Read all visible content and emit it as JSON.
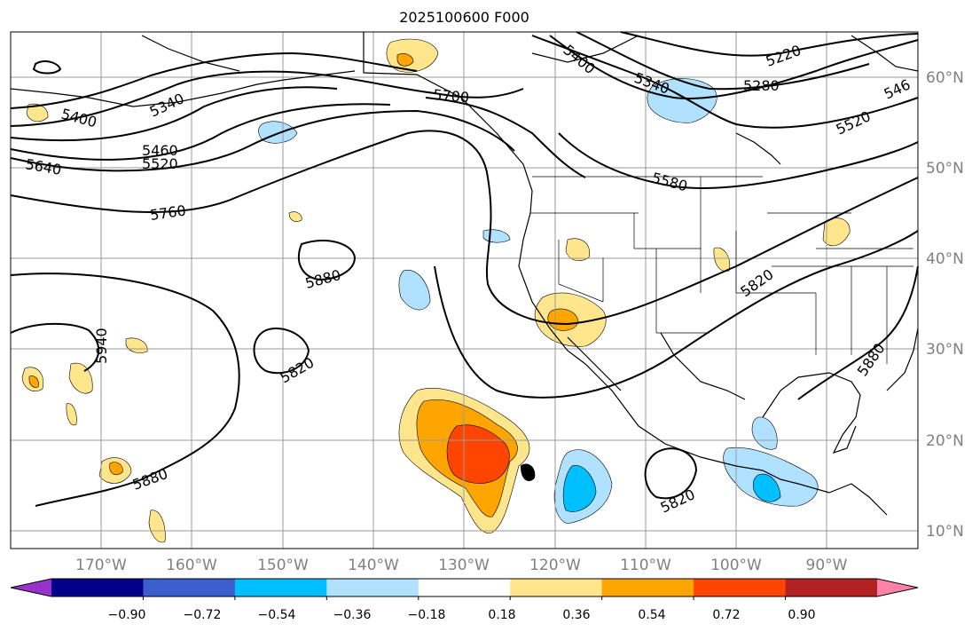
{
  "title": "2025100600 F000",
  "latitude_labels": [
    "60°N",
    "50°N",
    "40°N",
    "30°N",
    "20°N",
    "10°N"
  ],
  "longitude_labels": [
    "170°W",
    "160°W",
    "150°W",
    "140°W",
    "130°W",
    "120°W",
    "110°W",
    "100°W",
    "90°W"
  ],
  "contour_labels": [
    "5220",
    "5280",
    "5340",
    "5400",
    "5460",
    "5520",
    "5580",
    "5640",
    "5700",
    "5760",
    "5820",
    "5880",
    "5940",
    "546"
  ],
  "colorbar": {
    "tick_labels": [
      "−0.90",
      "−0.72",
      "−0.54",
      "−0.36",
      "−0.18",
      "0.18",
      "0.36",
      "0.54",
      "0.72",
      "0.90"
    ],
    "colors": [
      "#9932cc",
      "#00008b",
      "#3a5fcd",
      "#00bfff",
      "#b0e2ff",
      "#ffffff",
      "#ffe68c",
      "#ffa500",
      "#ff4500",
      "#b22222",
      "#ff82ab"
    ]
  },
  "chart_data": {
    "type": "map",
    "projection": "PlateCarree",
    "lon_range_deg": [
      -180,
      -80
    ],
    "lat_range_deg": [
      8,
      65
    ],
    "grid": true,
    "field_contours": "500 hPa geopotential height (m)",
    "contour_levels": [
      5220,
      5280,
      5340,
      5400,
      5460,
      5520,
      5580,
      5640,
      5700,
      5760,
      5820,
      5880,
      5940
    ],
    "shaded_field_levels": [
      -0.9,
      -0.72,
      -0.54,
      -0.36,
      -0.18,
      0.18,
      0.36,
      0.54,
      0.72,
      0.9
    ]
  }
}
